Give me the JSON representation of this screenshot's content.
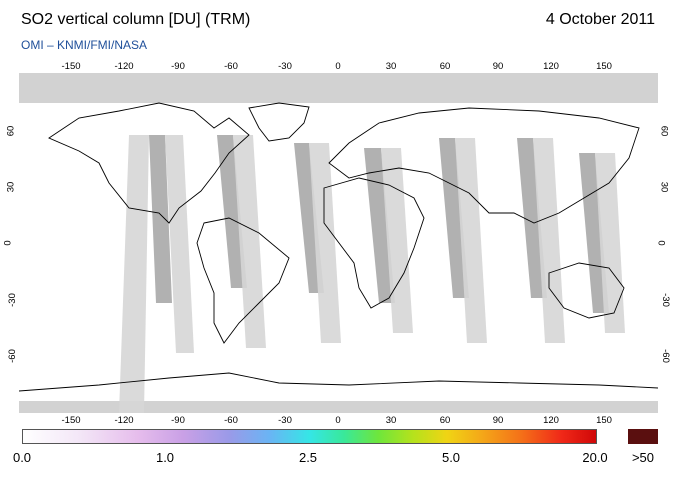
{
  "header": {
    "title": "SO2 vertical column [DU] (TRM)",
    "date": "4 October 2011",
    "subtitle": "OMI  –  KNMI/FMI/NASA"
  },
  "map": {
    "projection": "equirectangular",
    "lon_ticks": [
      "-150",
      "-120",
      "-90",
      "-60",
      "-30",
      "0",
      "30",
      "60",
      "90",
      "120",
      "150"
    ],
    "lat_ticks": [
      "60",
      "30",
      "0",
      "-30",
      "-60"
    ],
    "colors": {
      "background": "#ffffff",
      "polar_no_data": "#d2d2d2",
      "swath_dark": "#a9a9a9",
      "swath_light": "#d6d6d6",
      "coastline": "#000000"
    }
  },
  "colorbar": {
    "labels": [
      "0.0",
      "1.0",
      "2.5",
      "5.0",
      "20.0"
    ],
    "overflow_label": ">50",
    "overflow_color": "#5a0f0f"
  }
}
